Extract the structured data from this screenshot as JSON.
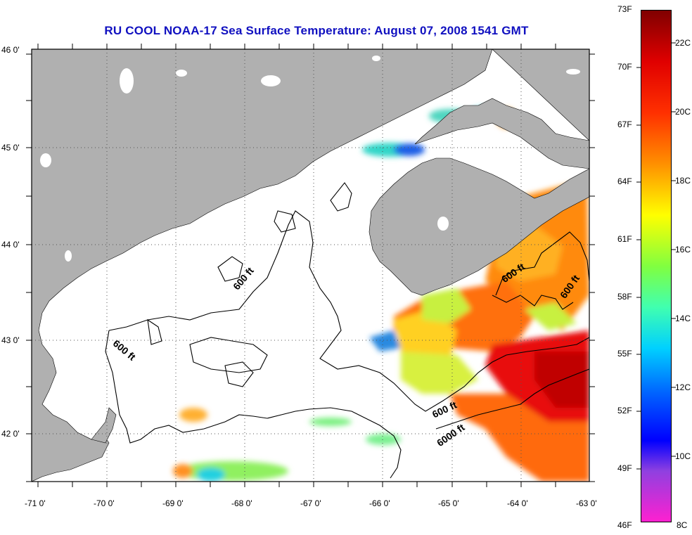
{
  "title": "RU COOL  NOAA-17  Sea Surface Temperature:  August 07, 2008 1541 GMT",
  "map": {
    "lat_labels": [
      "46 0'",
      "45 0'",
      "44 0'",
      "43 0'",
      "42 0'"
    ],
    "lon_labels": [
      "-71 0'",
      "-70 0'",
      "-69 0'",
      "-68 0'",
      "-67 0'",
      "-66 0'",
      "-65 0'",
      "-64 0'",
      "-63 0'"
    ],
    "contour_labels": [
      "600 ft",
      "600 ft",
      "600 ft",
      "600 ft",
      "600 ft",
      "6000 ft"
    ],
    "land_color": "#b0b0b0",
    "water_color": "#ffffff"
  },
  "colorbar": {
    "fahrenheit": [
      "73F",
      "70F",
      "67F",
      "64F",
      "61F",
      "58F",
      "55F",
      "52F",
      "49F",
      "46F"
    ],
    "celsius": [
      "22C",
      "20C",
      "18C",
      "16C",
      "14C",
      "12C",
      "10C",
      "8C"
    ]
  }
}
